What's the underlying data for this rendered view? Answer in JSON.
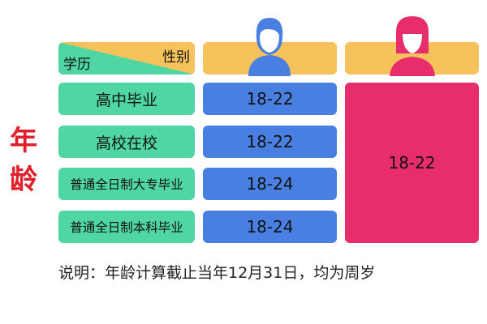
{
  "header": {
    "education_label": "学历",
    "gender_label": "性别",
    "male_icon": "male-person-icon",
    "female_icon": "female-person-icon"
  },
  "side_label": "年龄",
  "rows": [
    {
      "education": "高中毕业",
      "male": "18-22"
    },
    {
      "education": "高校在校",
      "male": "18-22"
    },
    {
      "education": "普通全日制大专毕业",
      "male": "18-24"
    },
    {
      "education": "普通全日制本科毕业",
      "male": "18-24"
    }
  ],
  "female_all": "18-22",
  "note": "说明：年龄计算截止当年12月31日，均为周岁",
  "colors": {
    "green": "#4fd6a2",
    "yellow": "#f5c25c",
    "blue": "#4a7fe2",
    "pink": "#e72d6b",
    "red": "#e21e2a"
  }
}
